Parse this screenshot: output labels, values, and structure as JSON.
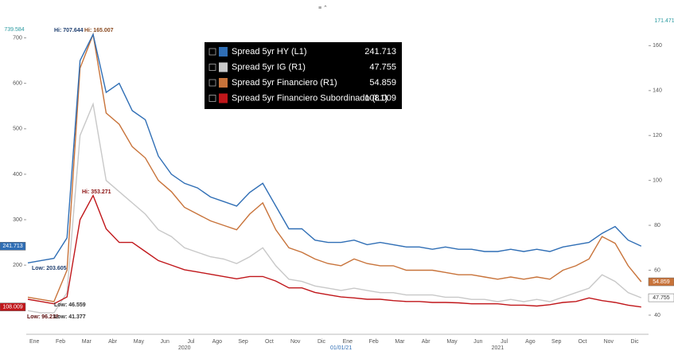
{
  "chart_data": {
    "type": "line",
    "categories": [
      "Ene",
      null,
      "Feb",
      null,
      "Mar",
      null,
      "Abr",
      null,
      "May",
      null,
      "Jun",
      null,
      "Jul",
      null,
      "Ago",
      null,
      "Sep",
      null,
      "Oct",
      null,
      "Nov",
      null,
      "Dic",
      null,
      "Ene",
      null,
      "Feb",
      null,
      "Mar",
      null,
      "Abr",
      null,
      "May",
      null,
      "Jun",
      null,
      "Jul",
      null,
      "Ago",
      null,
      "Sep",
      null,
      "Oct",
      null,
      "Nov",
      null,
      "Dic",
      null
    ],
    "year_labels": [
      "2020",
      "2021"
    ],
    "cursor_label": "01/01/21",
    "series": [
      {
        "name": "Spread 5yr HY (L1)",
        "color": "#2f6eb5",
        "values": [
          205,
          210,
          215,
          260,
          650,
          707.644,
          580,
          600,
          540,
          520,
          440,
          400,
          380,
          370,
          350,
          340,
          330,
          360,
          380,
          330,
          280,
          280,
          255,
          250,
          250,
          255,
          245,
          250,
          245,
          240,
          240,
          235,
          240,
          235,
          235,
          230,
          230,
          235,
          230,
          235,
          230,
          240,
          245,
          250,
          270,
          285,
          255,
          241.713
        ]
      },
      {
        "name": "Spread 5yr IG (R1)",
        "color": "#c8c8c8",
        "axis": "y2",
        "values": [
          42,
          41,
          41,
          50,
          120,
          134,
          100,
          95,
          90,
          85,
          78,
          75,
          70,
          68,
          66,
          65,
          63,
          66,
          70,
          62,
          56,
          55,
          53,
          52,
          51,
          52,
          51,
          50,
          50,
          49,
          49,
          49,
          48,
          48,
          47,
          47,
          46,
          47,
          46,
          47,
          46,
          48,
          50,
          52,
          58,
          55,
          50,
          47.755
        ]
      },
      {
        "name": "Spread 5yr Financiero (R1)",
        "color": "#c8733a",
        "axis": "y2",
        "values": [
          48,
          47,
          46,
          60,
          150,
          165.007,
          130,
          125,
          115,
          110,
          100,
          95,
          88,
          85,
          82,
          80,
          78,
          85,
          90,
          78,
          70,
          68,
          65,
          63,
          62,
          65,
          63,
          62,
          62,
          60,
          60,
          60,
          59,
          58,
          58,
          57,
          56,
          57,
          56,
          57,
          56,
          60,
          62,
          65,
          75,
          72,
          62,
          54.859
        ]
      },
      {
        "name": "Spread 5yr Financiero Subordinado (L1)",
        "color": "#c0161a",
        "values": [
          125,
          120,
          115,
          130,
          300,
          353.271,
          280,
          250,
          250,
          230,
          210,
          200,
          190,
          185,
          180,
          175,
          170,
          175,
          175,
          165,
          150,
          150,
          140,
          135,
          130,
          128,
          125,
          125,
          122,
          120,
          120,
          118,
          118,
          117,
          115,
          115,
          115,
          112,
          112,
          110,
          113,
          118,
          120,
          128,
          122,
          118,
          112,
          108.009
        ]
      }
    ],
    "annotations": [
      "Hi: 707.644",
      "Hi: 165.007",
      "Hi: 353.271",
      "Low: 203.605",
      "Low: 96.218",
      "Low: 46.559",
      "Low: 41.377"
    ],
    "ylim": [
      47.9,
      739.584
    ],
    "yticks": [
      200,
      300,
      400,
      500,
      600,
      700
    ],
    "y2lim": [
      31.48,
      171.471
    ],
    "y2ticks": [
      40,
      60,
      80,
      100,
      120,
      140,
      160
    ]
  }
}
